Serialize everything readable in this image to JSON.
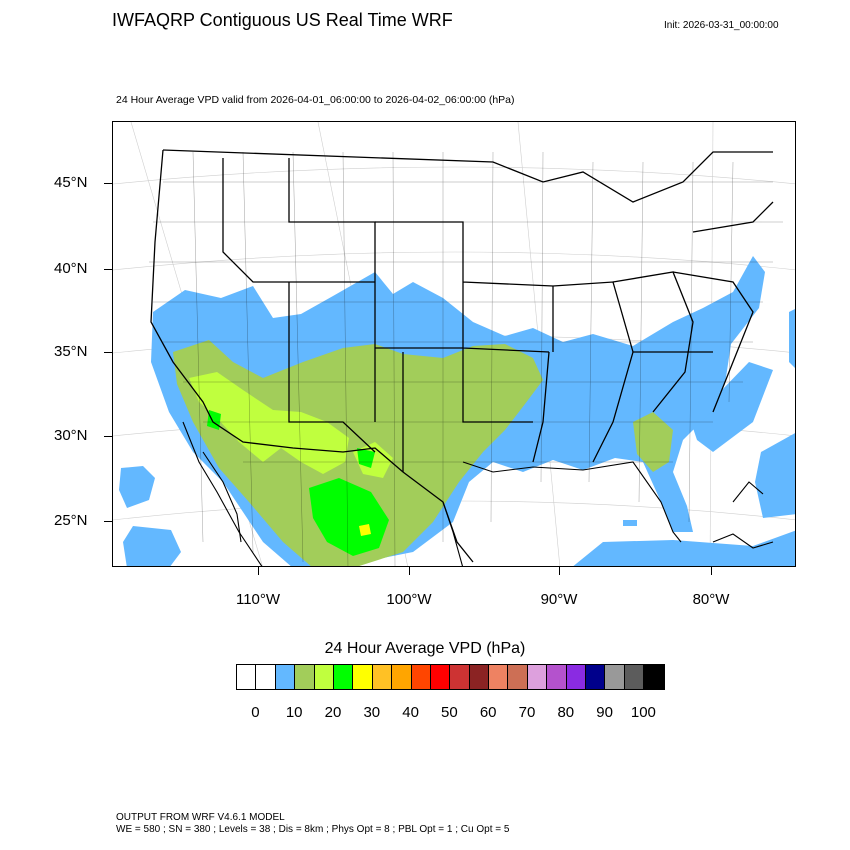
{
  "header": {
    "title": "IWFAQRP Contiguous US Real Time WRF",
    "init": "Init: 2026-03-31_00:00:00",
    "subtitle": "24 Hour Average VPD valid from 2026-04-01_06:00:00 to 2026-04-02_06:00:00   (hPa)"
  },
  "map": {
    "lat_labels": [
      "45°N",
      "40°N",
      "35°N",
      "30°N",
      "25°N"
    ],
    "lon_labels": [
      "110°W",
      "100°W",
      "90°W",
      "80°W"
    ],
    "colors": {
      "ocean_blue": "#63b8ff",
      "olive": "#a2cd5a",
      "light_green": "#c0ff3e",
      "bright_green": "#00ff00",
      "yellow": "#ffff00"
    }
  },
  "colorbar": {
    "title": "24 Hour Average VPD  (hPa)",
    "colors": [
      "#ffffff",
      "#ffffff",
      "#63b8ff",
      "#a2cd5a",
      "#c0ff3e",
      "#00ff00",
      "#ffff00",
      "#ffc125",
      "#ffa500",
      "#ff4500",
      "#ff0000",
      "#cd3333",
      "#8b2323",
      "#ee8262",
      "#cd6f55",
      "#dda0dd",
      "#b452cd",
      "#8a2be2",
      "#00008b",
      "#999999",
      "#5c5c5c",
      "#000000"
    ],
    "labels": [
      "0",
      "10",
      "20",
      "30",
      "40",
      "50",
      "60",
      "70",
      "80",
      "90",
      "100"
    ]
  },
  "footer": {
    "line1": "OUTPUT FROM WRF V4.6.1 MODEL",
    "line2": "WE = 580 ; SN = 380 ; Levels = 38 ; Dis = 8km ; Phys Opt = 8 ; PBL Opt = 1 ; Cu Opt = 5"
  }
}
